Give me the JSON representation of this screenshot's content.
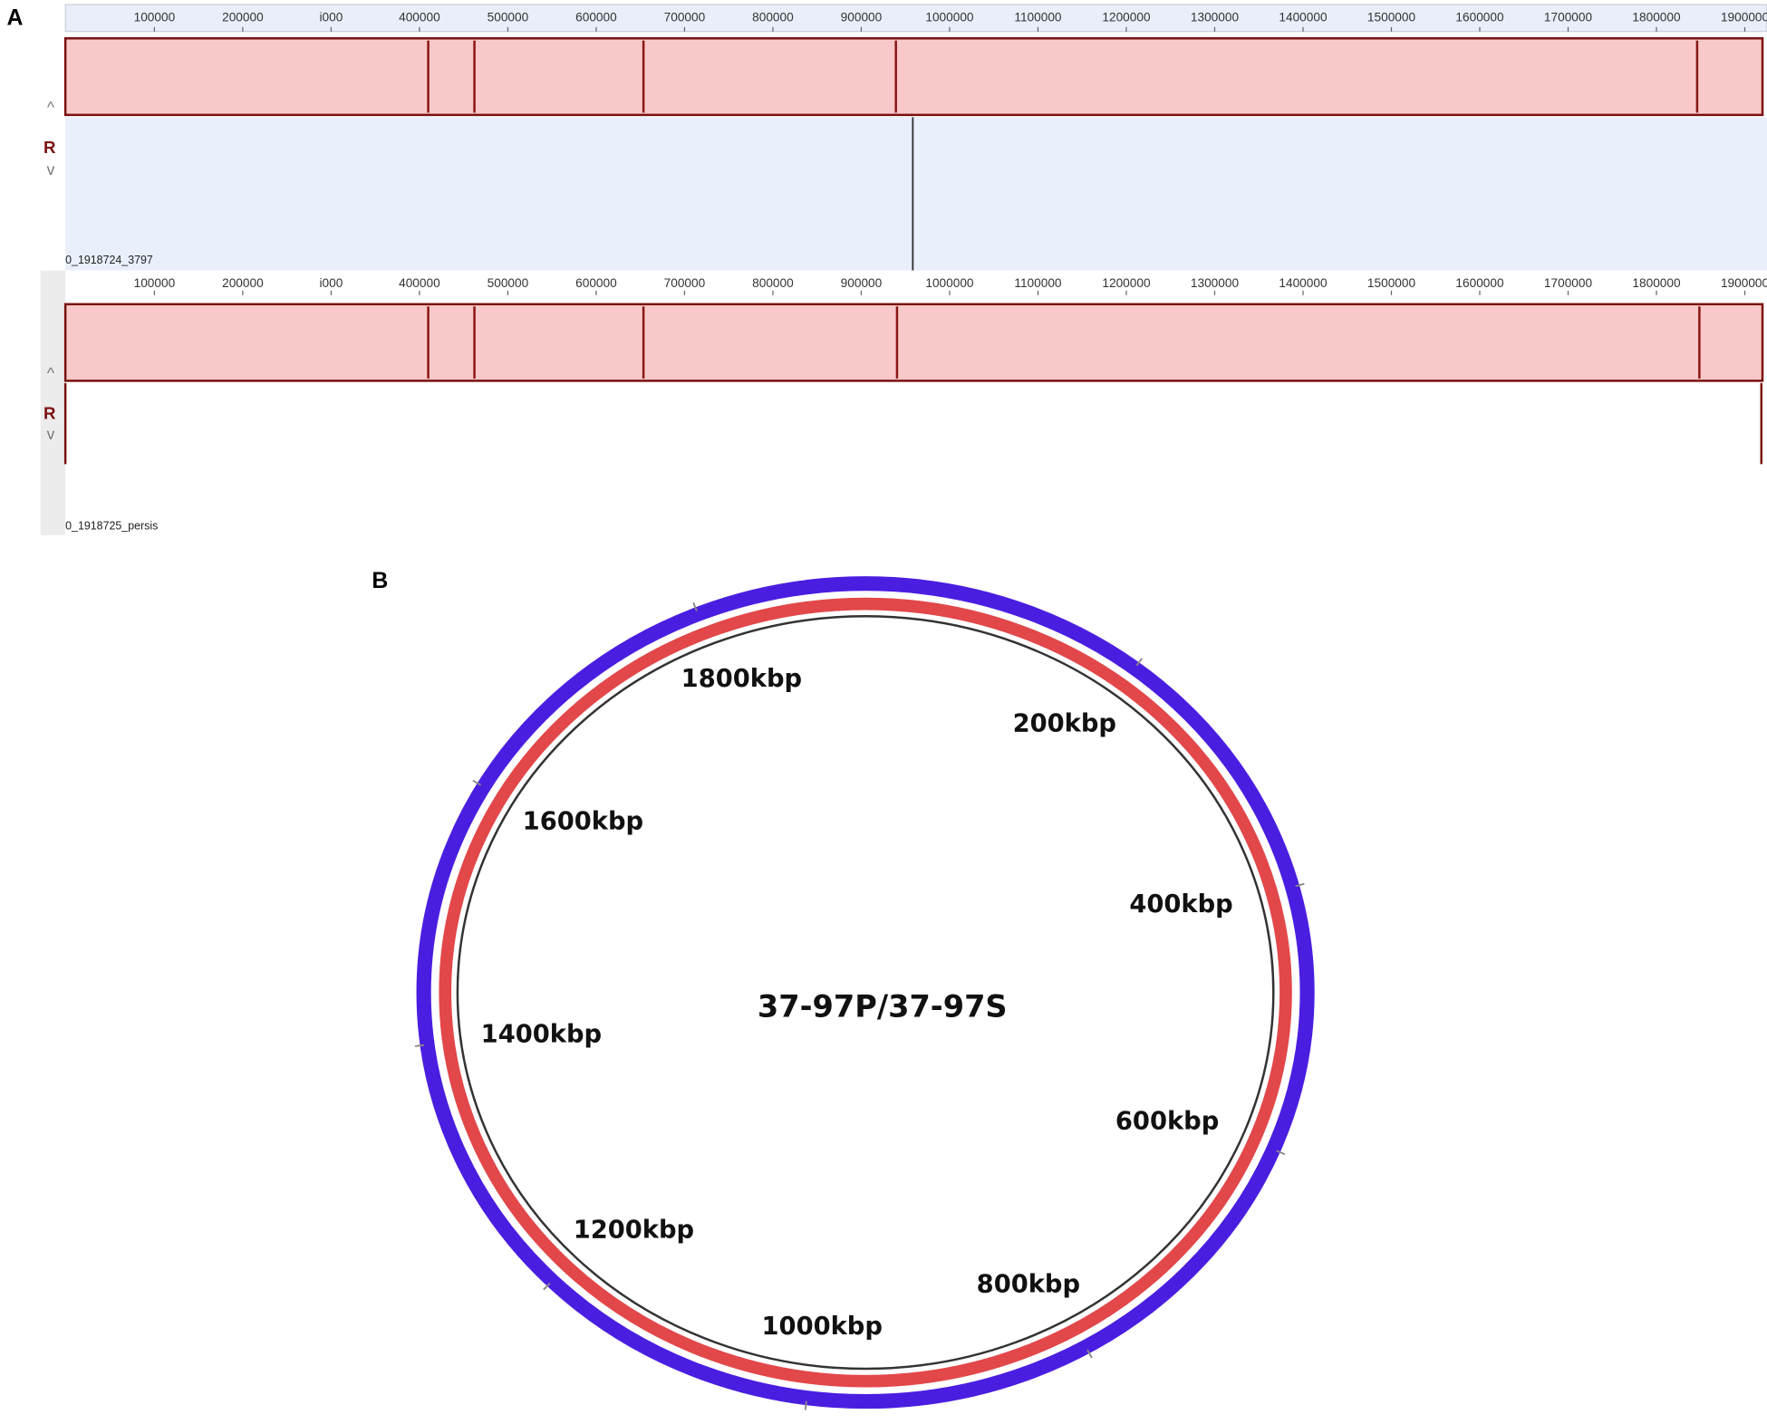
{
  "panel_a": {
    "label": "A",
    "xlim": [
      0,
      1918724
    ],
    "ruler_ticks": [
      100000,
      200000,
      {
        "value": 300000,
        "label": "i000"
      },
      400000,
      500000,
      600000,
      700000,
      800000,
      900000,
      1000000,
      1100000,
      1200000,
      1300000,
      1400000,
      1500000,
      1600000,
      1700000,
      1800000,
      1900000
    ],
    "strand_label": "R",
    "tracks": [
      {
        "name": "0_1918724_3797"
      },
      {
        "name": "0_1918725_persis"
      }
    ]
  },
  "panel_b": {
    "label": "B",
    "title": "37-97P/37-97S",
    "lim": [
      0,
      1918.724
    ],
    "ticks": [
      {
        "value": 200,
        "label": "200kbp"
      },
      {
        "value": 400,
        "label": "400kbp"
      },
      {
        "value": 600,
        "label": "600kbp"
      },
      {
        "value": 800,
        "label": "800kbp"
      },
      {
        "value": 1000,
        "label": "1000kbp"
      },
      {
        "value": 1200,
        "label": "1200kbp"
      },
      {
        "value": 1400,
        "label": "1400kbp"
      },
      {
        "value": 1600,
        "label": "1600kbp"
      },
      {
        "value": 1800,
        "label": "1800kbp"
      }
    ]
  }
}
